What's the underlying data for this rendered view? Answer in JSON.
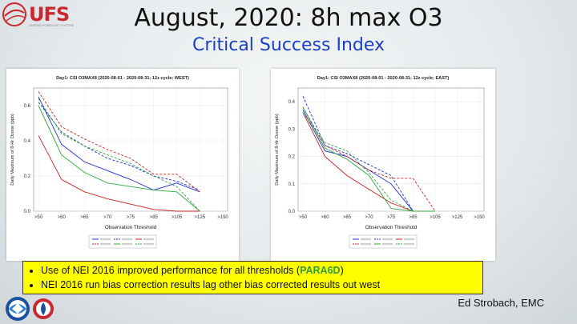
{
  "slide": {
    "title": "August, 2020:  8h max O3",
    "subtitle": "Critical Success Index",
    "logo_text": "UFS",
    "logo_tagline": "UNIFIED FORECAST SYSTEM",
    "bullets": [
      {
        "text": "Use of NEI 2016 improved performance for all thresholds (",
        "highlight": "PARA6D",
        "tail": ")"
      },
      {
        "text": "NEI 2016 run  bias correction results lag other bias corrected results out west",
        "highlight": "",
        "tail": ""
      }
    ],
    "credit": "Ed Strobach, EMC",
    "colors": {
      "title_blue": "#1a3fc2",
      "highlight_box": "#ffff00",
      "para_green": "#2e9c3a",
      "logo_red": "#c8282e"
    },
    "icons": [
      "noaa-logo-icon",
      "nws-logo-icon",
      "ufs-logo-icon"
    ]
  },
  "chart_data": [
    {
      "type": "line",
      "title": "Day1: CSI O3MAX8 (2020-08-01 - 2020-08-31; 12z cycle; WEST)",
      "xlabel": "Observation Threshold",
      "ylabel": "Daily Maximum of 8-Hr Ozone (ppb)",
      "categories": [
        ">50",
        ">60",
        ">65",
        ">70",
        ">75",
        ">85",
        ">105",
        ">125",
        ">150"
      ],
      "ylim": [
        0.0,
        0.7
      ],
      "yticks": [
        "0.0",
        "0.2",
        "0.4",
        "0.6"
      ],
      "series": [
        {
          "color": "#1f2fd0",
          "dash": false,
          "values": [
            0.65,
            0.38,
            0.28,
            0.23,
            0.18,
            0.12,
            0.16,
            0.11,
            null
          ]
        },
        {
          "color": "#1f2fd0",
          "dash": true,
          "values": [
            0.62,
            0.45,
            0.37,
            0.3,
            0.26,
            0.2,
            0.17,
            0.12,
            null
          ]
        },
        {
          "color": "#d01f1f",
          "dash": false,
          "values": [
            0.43,
            0.18,
            0.11,
            0.07,
            0.04,
            0.01,
            0.0,
            0.0,
            null
          ]
        },
        {
          "color": "#d01f1f",
          "dash": true,
          "values": [
            0.68,
            0.48,
            0.41,
            0.35,
            0.3,
            0.21,
            0.21,
            0.11,
            null
          ]
        },
        {
          "color": "#2ea83a",
          "dash": false,
          "values": [
            0.6,
            0.32,
            0.22,
            0.16,
            0.14,
            0.12,
            0.11,
            0.0,
            null
          ]
        },
        {
          "color": "#2ea83a",
          "dash": true,
          "values": [
            0.64,
            0.44,
            0.37,
            0.32,
            0.27,
            0.2,
            0.14,
            0.0,
            null
          ]
        }
      ]
    },
    {
      "type": "line",
      "title": "Day1: CSI O3MAX8 (2020-08-01 - 2020-08-31; 12z cycle; EAST)",
      "xlabel": "Observation Threshold",
      "ylabel": "Daily Maximum of 8-Hr Ozone (ppb)",
      "categories": [
        ">50",
        ">60",
        ">65",
        ">70",
        ">75",
        ">85",
        ">105",
        ">125",
        ">150"
      ],
      "ylim": [
        0.0,
        0.45
      ],
      "yticks": [
        "0.0",
        "0.1",
        "0.2",
        "0.3",
        "0.4"
      ],
      "series": [
        {
          "color": "#1f2fd0",
          "dash": false,
          "values": [
            0.37,
            0.22,
            0.2,
            0.15,
            0.1,
            0.0,
            0.0,
            null,
            null
          ]
        },
        {
          "color": "#1f2fd0",
          "dash": true,
          "values": [
            0.42,
            0.24,
            0.21,
            0.17,
            0.13,
            0.0,
            0.0,
            null,
            null
          ]
        },
        {
          "color": "#d01f1f",
          "dash": false,
          "values": [
            0.36,
            0.2,
            0.13,
            0.08,
            0.03,
            0.0,
            0.0,
            null,
            null
          ]
        },
        {
          "color": "#d01f1f",
          "dash": true,
          "values": [
            0.38,
            0.24,
            0.2,
            0.15,
            0.12,
            0.12,
            0.0,
            null,
            null
          ]
        },
        {
          "color": "#2ea83a",
          "dash": false,
          "values": [
            0.38,
            0.23,
            0.19,
            0.13,
            0.01,
            0.0,
            0.0,
            null,
            null
          ]
        },
        {
          "color": "#2ea83a",
          "dash": true,
          "values": [
            0.36,
            0.25,
            0.22,
            0.14,
            0.04,
            0.0,
            0.0,
            null,
            null
          ]
        }
      ]
    }
  ]
}
